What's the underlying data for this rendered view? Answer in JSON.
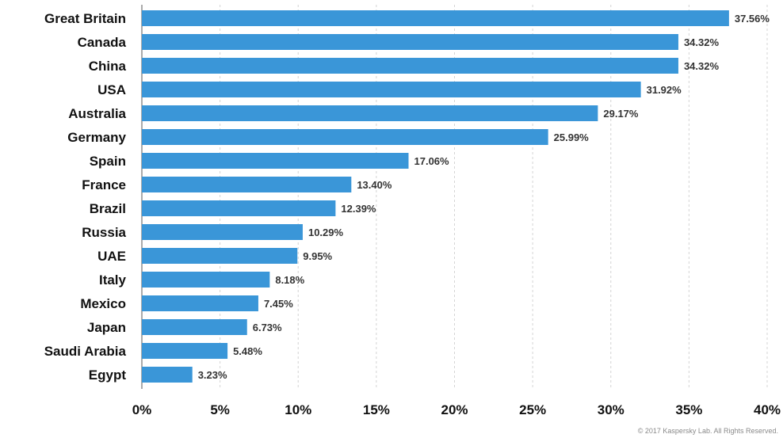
{
  "chart_data": {
    "type": "bar",
    "orientation": "horizontal",
    "categories": [
      "Great Britain",
      "Canada",
      "China",
      "USA",
      "Australia",
      "Germany",
      "Spain",
      "France",
      "Brazil",
      "Russia",
      "UAE",
      "Italy",
      "Mexico",
      "Japan",
      "Saudi Arabia",
      "Egypt"
    ],
    "values": [
      37.56,
      34.32,
      34.32,
      31.92,
      29.17,
      25.99,
      17.06,
      13.4,
      12.39,
      10.29,
      9.95,
      8.18,
      7.45,
      6.73,
      5.48,
      3.23
    ],
    "value_labels": [
      "37.56%",
      "34.32%",
      "34.32%",
      "31.92%",
      "29.17%",
      "25.99%",
      "17.06%",
      "13.40%",
      "12.39%",
      "10.29%",
      "9.95%",
      "8.18%",
      "7.45%",
      "6.73%",
      "5.48%",
      "3.23%"
    ],
    "x_ticks": [
      0,
      5,
      10,
      15,
      20,
      25,
      30,
      35,
      40
    ],
    "x_tick_labels": [
      "0%",
      "5%",
      "10%",
      "15%",
      "20%",
      "25%",
      "30%",
      "35%",
      "40%"
    ],
    "xlim": [
      0,
      40
    ],
    "title": "",
    "xlabel": "",
    "ylabel": "",
    "grid": "vertical dashed",
    "legend": "none",
    "bar_color": "#3a96d8"
  },
  "footer": {
    "copyright": "© 2017 Kaspersky Lab. All Rights Reserved."
  }
}
